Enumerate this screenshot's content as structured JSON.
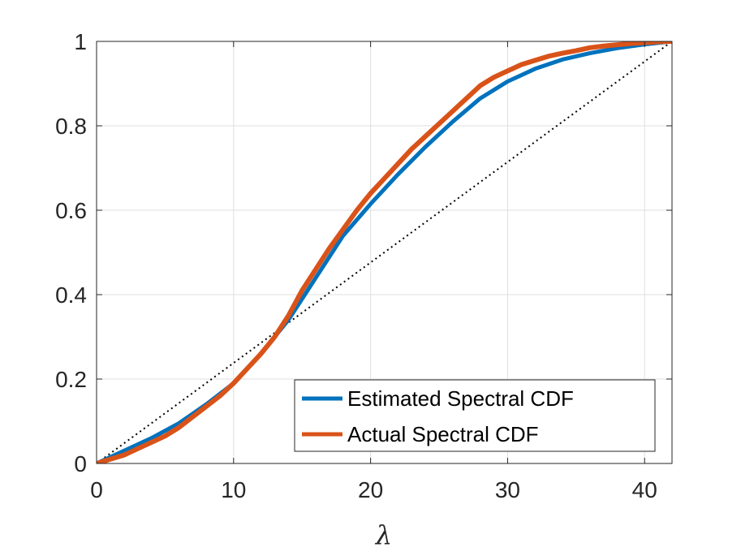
{
  "chart_data": {
    "type": "line",
    "title": "",
    "xlabel": "λ",
    "ylabel": "",
    "xlim": [
      0,
      42
    ],
    "ylim": [
      0,
      1
    ],
    "x_ticks": [
      0,
      10,
      20,
      30,
      40
    ],
    "x_tick_labels": [
      "0",
      "10",
      "20",
      "30",
      "40"
    ],
    "y_ticks": [
      0,
      0.2,
      0.4,
      0.6,
      0.8,
      1
    ],
    "y_tick_labels": [
      "0",
      "0.2",
      "0.4",
      "0.6",
      "0.8",
      "1"
    ],
    "grid": true,
    "legend_location": "bottom-right",
    "series": [
      {
        "name": "Estimated Spectral CDF",
        "color": "#0072BD",
        "style": "solid",
        "x": [
          0,
          2,
          4,
          6,
          8,
          10,
          12,
          14,
          16,
          18,
          20,
          22,
          24,
          26,
          28,
          30,
          32,
          34,
          36,
          38,
          40,
          42
        ],
        "y": [
          0,
          0.03,
          0.06,
          0.095,
          0.14,
          0.19,
          0.26,
          0.34,
          0.44,
          0.54,
          0.615,
          0.685,
          0.75,
          0.81,
          0.865,
          0.905,
          0.935,
          0.957,
          0.972,
          0.984,
          0.993,
          1.0
        ]
      },
      {
        "name": "Actual Spectral CDF",
        "color": "#D95319",
        "style": "solid",
        "x": [
          0,
          1,
          2,
          3,
          4,
          5,
          6,
          7,
          8,
          9,
          10,
          11,
          12,
          13,
          14,
          15,
          16,
          17,
          18,
          19,
          20,
          21,
          22,
          23,
          24,
          25,
          26,
          27,
          28,
          29,
          30,
          31,
          32,
          33,
          34,
          35,
          36,
          37,
          38,
          39,
          40,
          41,
          42
        ],
        "y": [
          0,
          0.01,
          0.02,
          0.035,
          0.05,
          0.065,
          0.085,
          0.11,
          0.135,
          0.16,
          0.19,
          0.225,
          0.26,
          0.3,
          0.35,
          0.41,
          0.46,
          0.51,
          0.555,
          0.6,
          0.64,
          0.675,
          0.71,
          0.745,
          0.775,
          0.805,
          0.835,
          0.865,
          0.895,
          0.915,
          0.93,
          0.945,
          0.955,
          0.965,
          0.972,
          0.978,
          0.985,
          0.989,
          0.992,
          0.995,
          0.997,
          0.999,
          1.0
        ]
      },
      {
        "name": "Reference diagonal",
        "color": "#000000",
        "style": "dotted",
        "x": [
          0,
          42
        ],
        "y": [
          0,
          1
        ]
      }
    ]
  }
}
